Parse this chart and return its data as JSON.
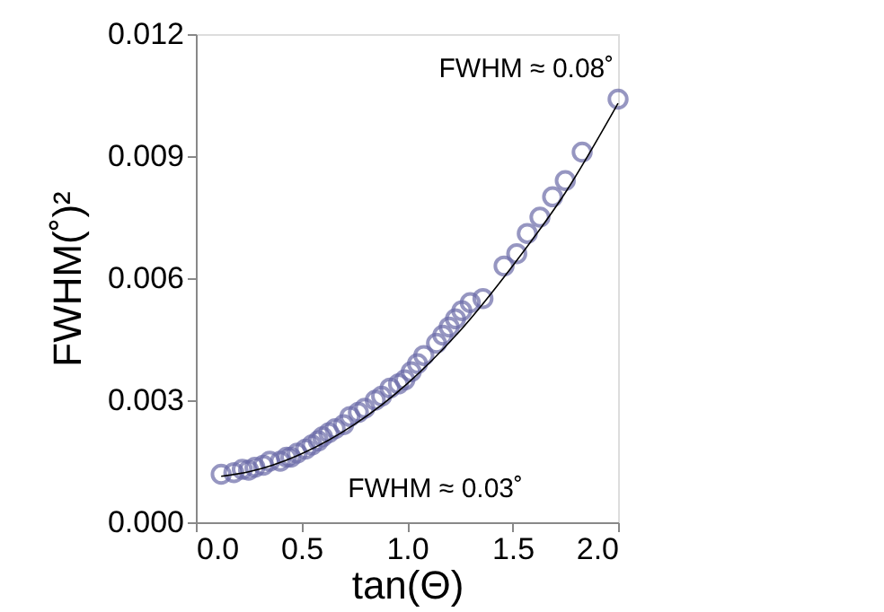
{
  "chart_data": {
    "type": "scatter",
    "xlabel": "tan(Θ)",
    "ylabel": "FWHM(˚)²",
    "xlim": [
      0.0,
      2.0
    ],
    "xticks": [
      {
        "value": 0,
        "label": "0.0"
      },
      0.5,
      {
        "value": 1,
        "label": "1.0"
      },
      1.5,
      {
        "value": 2,
        "label": "2.0"
      }
    ],
    "ylim": [
      0.0,
      0.012
    ],
    "yticks": [
      {
        "value": 0,
        "label": "0.000"
      },
      {
        "value": 0.003,
        "label": "0.003"
      },
      {
        "value": 0.006,
        "label": "0.006"
      },
      {
        "value": 0.009,
        "label": "0.009"
      },
      {
        "value": 0.012,
        "label": "0.012"
      }
    ],
    "grid": false,
    "series": [
      {
        "marker": "circle",
        "color": "#6b6ba8",
        "x": [
          0.12,
          0.18,
          0.22,
          0.25,
          0.28,
          0.32,
          0.35,
          0.4,
          0.43,
          0.45,
          0.48,
          0.52,
          0.55,
          0.58,
          0.6,
          0.63,
          0.66,
          0.7,
          0.73,
          0.77,
          0.8,
          0.85,
          0.88,
          0.92,
          0.96,
          0.99,
          1.02,
          1.05,
          1.08,
          1.14,
          1.17,
          1.2,
          1.23,
          1.26,
          1.3,
          1.36,
          1.46,
          1.52,
          1.57,
          1.63,
          1.69,
          1.75,
          1.83,
          2.0
        ],
        "values": [
          0.00118,
          0.00122,
          0.0013,
          0.00128,
          0.00135,
          0.0014,
          0.0015,
          0.0015,
          0.0016,
          0.0016,
          0.0017,
          0.0018,
          0.0019,
          0.002,
          0.0021,
          0.0022,
          0.0023,
          0.0024,
          0.0026,
          0.0027,
          0.0028,
          0.003,
          0.0031,
          0.0033,
          0.0034,
          0.0035,
          0.0037,
          0.0039,
          0.0041,
          0.0044,
          0.0046,
          0.0048,
          0.005,
          0.0052,
          0.0054,
          0.0055,
          0.0063,
          0.0066,
          0.0071,
          0.0075,
          0.008,
          0.0084,
          0.0091,
          0.0104
        ]
      },
      {
        "type": "line",
        "color": "#000000",
        "x": [
          0.12,
          0.25,
          0.5,
          0.75,
          1.0,
          1.25,
          1.5,
          1.75,
          2.0
        ],
        "values": [
          0.00113,
          0.00124,
          0.00168,
          0.0024,
          0.0034,
          0.0047,
          0.0063,
          0.0081,
          0.0103
        ]
      }
    ],
    "annotations": [
      "FWHM ≈ 0.08˚",
      "FWHM ≈ 0.03˚"
    ]
  }
}
